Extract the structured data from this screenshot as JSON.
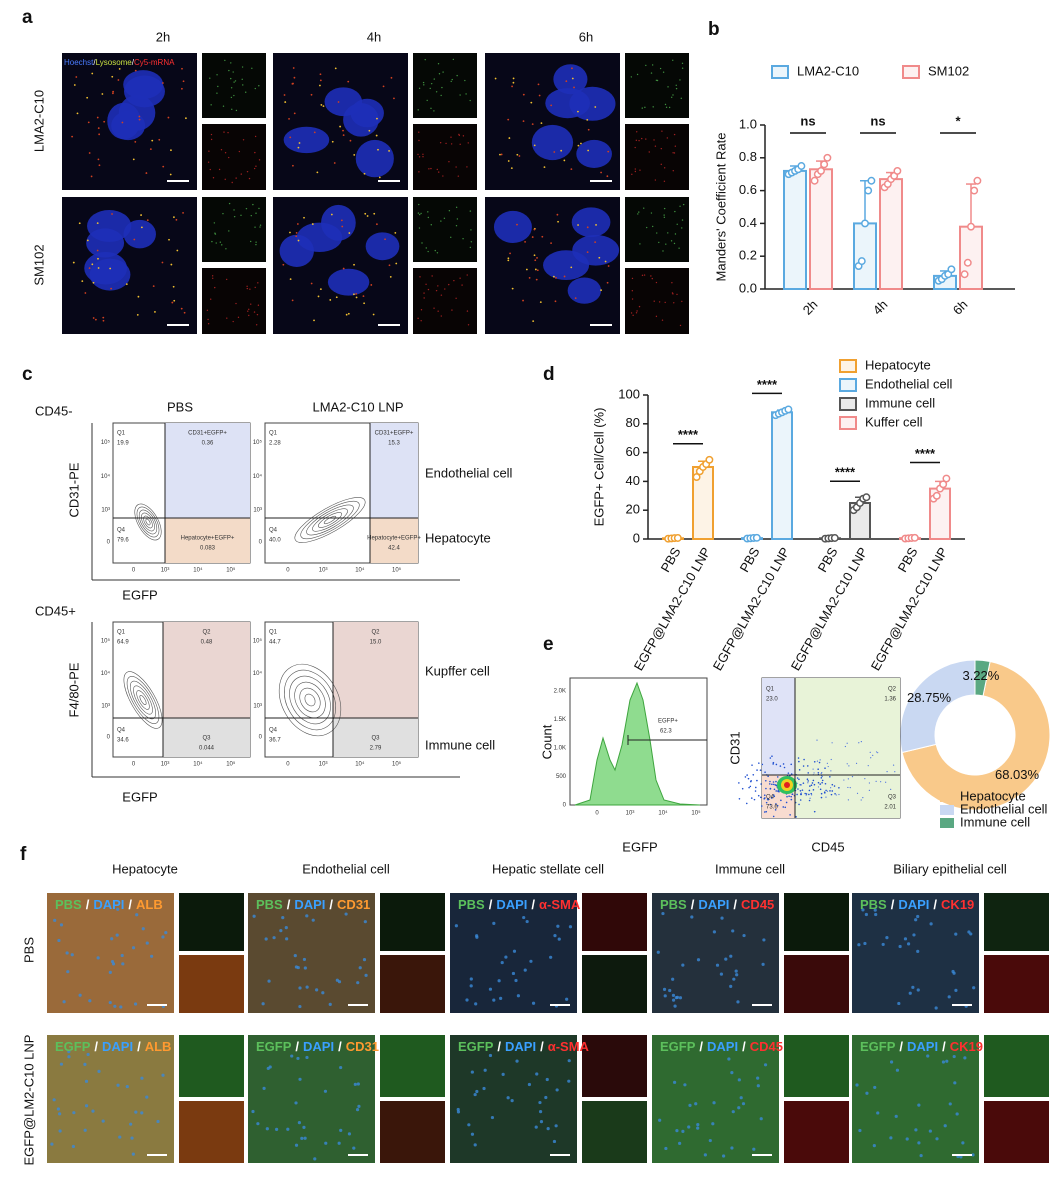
{
  "panel_labels": [
    "a",
    "b",
    "c",
    "d",
    "e",
    "f"
  ],
  "panel_a": {
    "times": [
      "2h",
      "4h",
      "6h"
    ],
    "rows": [
      "LMA2-C10",
      "SM102"
    ],
    "stain_legend": [
      "Hoechst",
      "/",
      "Lysosome",
      "/",
      "Cy5-mRNA"
    ],
    "stain_colors": [
      "#4a7cff",
      "#ffffff",
      "#c8e040",
      "#ffffff",
      "#ff3030"
    ]
  },
  "panel_c": {
    "top_gate": "CD45-",
    "bottom_gate": "CD45+",
    "conditions": [
      "PBS",
      "LMA2-C10 LNP"
    ],
    "top_y_label": "CD31-PE",
    "bottom_y_label": "F4/80-PE",
    "x_label": "EGFP",
    "top_populations": [
      "Endothelial cell",
      "Hepatocyte"
    ],
    "bottom_populations": [
      "Kupffer cell",
      "Immune cell"
    ],
    "axis_ticks": [
      "0",
      "10³",
      "10⁴",
      "10⁵"
    ],
    "plots": [
      {
        "quadrants": [
          {
            "name": "Q1",
            "value": "19.9"
          },
          {
            "name": "CD31+EGFP+",
            "value": "0.36"
          },
          {
            "name": "Q4",
            "value": "79.6"
          },
          {
            "name": "Hepatocyte+EGFP+",
            "value": "0.083"
          }
        ]
      },
      {
        "quadrants": [
          {
            "name": "Q1",
            "value": "2.28"
          },
          {
            "name": "CD31+EGFP+",
            "value": "15.3"
          },
          {
            "name": "Q4",
            "value": "40.0"
          },
          {
            "name": "Hepatocyte+EGFP+",
            "value": "42.4"
          }
        ]
      },
      {
        "quadrants": [
          {
            "name": "Q1",
            "value": "64.9"
          },
          {
            "name": "Q2",
            "value": "0.48"
          },
          {
            "name": "Q4",
            "value": "34.6"
          },
          {
            "name": "Q3",
            "value": "0.044"
          }
        ]
      },
      {
        "quadrants": [
          {
            "name": "Q1",
            "value": "44.7"
          },
          {
            "name": "Q2",
            "value": "15.0"
          },
          {
            "name": "Q4",
            "value": "36.7"
          },
          {
            "name": "Q3",
            "value": "2.79"
          }
        ]
      }
    ]
  },
  "panel_e": {
    "histogram": {
      "y_label": "Count",
      "x_label": "EGFP",
      "yticks": [
        "0",
        "500",
        "1.0K",
        "1.5K",
        "2.0K"
      ],
      "xticks": [
        "0",
        "10³",
        "10⁴",
        "10⁵"
      ],
      "gate_name": "EGFP+",
      "gate_value": "62.3"
    },
    "scatter": {
      "y_label": "CD31",
      "x_label": "CD45",
      "quadrants": [
        {
          "name": "Q1",
          "value": "23.0"
        },
        {
          "name": "Q2",
          "value": "1.36"
        },
        {
          "name": "Q4",
          "value": "73.6"
        },
        {
          "name": "Q3",
          "value": "2.01"
        }
      ]
    }
  },
  "panel_f": {
    "columns": [
      "Hepatocyte",
      "Endothelial cell",
      "Hepatic stellate cell",
      "Immune cell",
      "Biliary epithelial cell"
    ],
    "rows": [
      "PBS",
      "EGFP@LM2-C10 LNP"
    ],
    "row_stains": [
      "PBS",
      "EGFP"
    ],
    "separator": "/",
    "nucleus": "DAPI",
    "markers": [
      "ALB",
      "CD31",
      "α-SMA",
      "CD45",
      "CK19"
    ],
    "marker_colors": [
      "#ff9a30",
      "#ff9a30",
      "#ff3030",
      "#ff3030",
      "#ff3030"
    ]
  },
  "chart_data": [
    {
      "type": "bar",
      "y_label": "Manders' Coefficient Rate",
      "categories": [
        "2h",
        "4h",
        "6h"
      ],
      "series": [
        {
          "name": "LMA2-C10",
          "color": "#5aa9e0",
          "values": [
            0.72,
            0.4,
            0.08
          ],
          "errors": [
            0.03,
            0.26,
            0.03
          ],
          "points": [
            [
              0.7,
              0.71,
              0.72,
              0.73,
              0.75
            ],
            [
              0.14,
              0.17,
              0.4,
              0.6,
              0.66
            ],
            [
              0.05,
              0.06,
              0.08,
              0.09,
              0.12
            ]
          ]
        },
        {
          "name": "SM102",
          "color": "#f08a8a",
          "values": [
            0.73,
            0.67,
            0.38
          ],
          "errors": [
            0.05,
            0.04,
            0.26
          ],
          "points": [
            [
              0.66,
              0.7,
              0.72,
              0.76,
              0.8
            ],
            [
              0.62,
              0.64,
              0.67,
              0.69,
              0.72
            ],
            [
              0.09,
              0.16,
              0.38,
              0.6,
              0.66
            ]
          ]
        }
      ],
      "ylim": [
        0,
        1
      ],
      "yticks": [
        {
          "value": 0,
          "label": "0.0"
        },
        0.2,
        0.4,
        0.6,
        0.8,
        {
          "value": 1,
          "label": "1.0"
        }
      ],
      "significance": [
        "ns",
        "ns",
        "*"
      ],
      "legend": "top"
    },
    {
      "type": "bar",
      "y_label": "EGFP+ Cell/Cell (%)",
      "categories": [
        "PBS",
        "EGFP@LMA2-C10 LNP",
        "PBS",
        "EGFP@LMA2-C10 LNP",
        "PBS",
        "EGFP@LMA2-C10 LNP",
        "PBS",
        "EGFP@LMA2-C10 LNP"
      ],
      "series": [
        {
          "name": "Hepatocyte",
          "color": "#f0a030",
          "values": [
            0.5,
            50,
            null,
            null,
            null,
            null,
            null,
            null
          ],
          "errors": [
            0.3,
            4,
            null,
            null,
            null,
            null,
            null,
            null
          ],
          "points": [
            [
              0.2,
              0.4,
              0.6,
              0.7
            ],
            [
              43,
              47,
              50,
              52,
              55
            ],
            null,
            null,
            null,
            null,
            null,
            null
          ]
        },
        {
          "name": "Endothelial cell",
          "color": "#5aa9e0",
          "values": [
            null,
            null,
            0.6,
            88,
            null,
            null,
            null,
            null
          ],
          "errors": [
            null,
            null,
            0.3,
            1.5,
            null,
            null,
            null,
            null
          ],
          "points": [
            null,
            null,
            [
              0.3,
              0.5,
              0.7,
              0.8
            ],
            [
              86,
              87,
              88,
              89,
              90
            ],
            null,
            null,
            null,
            null
          ]
        },
        {
          "name": "Immune cell",
          "color": "#555555",
          "values": [
            null,
            null,
            null,
            null,
            0.5,
            25,
            null,
            null
          ],
          "errors": [
            null,
            null,
            null,
            null,
            0.3,
            4,
            null,
            null
          ],
          "points": [
            null,
            null,
            null,
            null,
            [
              0.2,
              0.4,
              0.6,
              0.7
            ],
            [
              20,
              22,
              25,
              28,
              29
            ],
            null,
            null
          ]
        },
        {
          "name": "Kuffer cell",
          "color": "#f08a8a",
          "values": [
            null,
            null,
            null,
            null,
            null,
            null,
            0.6,
            35
          ],
          "errors": [
            null,
            null,
            null,
            null,
            null,
            null,
            0.3,
            5
          ],
          "points": [
            null,
            null,
            null,
            null,
            null,
            null,
            [
              0.3,
              0.5,
              0.7,
              0.8
            ],
            [
              28,
              30,
              35,
              38,
              42
            ]
          ]
        }
      ],
      "ylim": [
        0,
        100
      ],
      "yticks": [
        0,
        20,
        40,
        60,
        80,
        100
      ],
      "significance": [
        "****",
        "****",
        "****",
        "****"
      ],
      "legend": "right"
    },
    {
      "type": "pie",
      "donut": true,
      "categories": [
        "Hepatocyte",
        "Endothelial cell",
        "Immune cell"
      ],
      "values": [
        68.03,
        28.75,
        3.22
      ],
      "value_labels": [
        "68.03%",
        "28.75%",
        "3.22%"
      ],
      "colors": [
        "#f9c98a",
        "#c9d8f2",
        "#5aa882"
      ]
    }
  ]
}
